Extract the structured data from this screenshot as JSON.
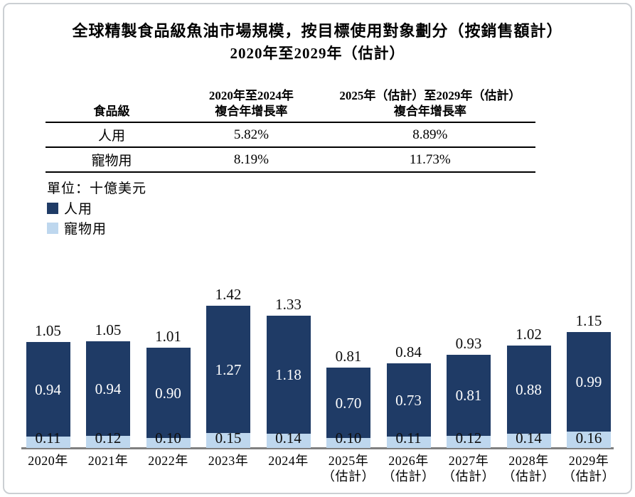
{
  "chart_data": {
    "type": "bar",
    "stacked": true,
    "title": "全球精製食品級魚油市場規模，按目標使用對象劃分（按銷售額計）",
    "subtitle": "2020年至2029年（估計）",
    "unit_label": "單位：十億美元",
    "categories": [
      "2020年",
      "2021年",
      "2022年",
      "2023年",
      "2024年",
      "2025年",
      "2026年",
      "2027年",
      "2028年",
      "2029年"
    ],
    "category_sublabels": [
      "",
      "",
      "",
      "",
      "",
      "（估計）",
      "（估計）",
      "（估計）",
      "（估計）",
      "（估計）"
    ],
    "series": [
      {
        "name": "人用",
        "color": "#1f3b66",
        "values": [
          0.94,
          0.94,
          0.9,
          1.27,
          1.18,
          0.7,
          0.73,
          0.81,
          0.88,
          0.99
        ]
      },
      {
        "name": "寵物用",
        "color": "#bed7ee",
        "values": [
          0.11,
          0.12,
          0.1,
          0.15,
          0.14,
          0.1,
          0.11,
          0.12,
          0.14,
          0.16
        ]
      }
    ],
    "totals": [
      1.05,
      1.05,
      1.01,
      1.42,
      1.33,
      0.81,
      0.84,
      0.93,
      1.02,
      1.15
    ],
    "ylim": [
      0,
      1.55
    ],
    "grid": false,
    "legend_position": "top-left",
    "axis_color": "#7f7f7f"
  },
  "table": {
    "col1_header": "食品級",
    "col2_header_line1": "2020年至2024年",
    "col2_header_line2": "複合年增長率",
    "col3_header_line1": "2025年（估計）至2029年（估計）",
    "col3_header_line2": "複合年增長率",
    "rows": [
      {
        "category": "人用",
        "cagr_2020_2024": "5.82%",
        "cagr_2025_2029": "8.89%"
      },
      {
        "category": "寵物用",
        "cagr_2020_2024": "8.19%",
        "cagr_2025_2029": "11.73%"
      }
    ]
  }
}
